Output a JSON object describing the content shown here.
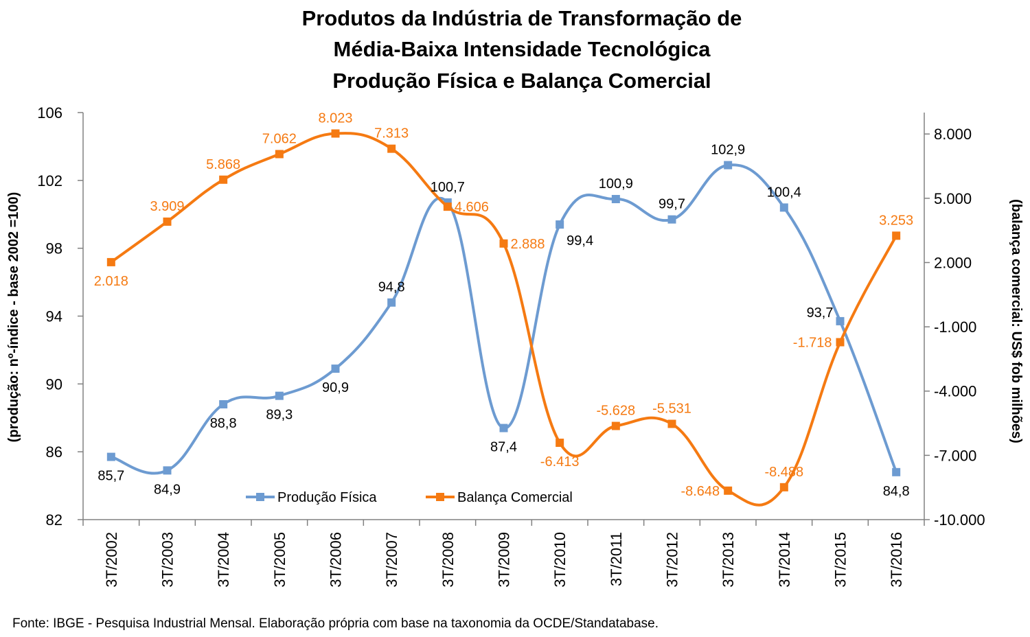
{
  "chart_data": {
    "type": "line",
    "title_lines": [
      "Produtos da Indústria de Transformação de",
      "Média-Baixa Intensidade Tecnológica",
      "Produção Física e Balança Comercial"
    ],
    "ylabel_left": "(produção:  nº-índice - base 2002 =100)",
    "ylabel_right": "(balança comercial:  US$ fob milhões)",
    "categories": [
      "3T/2002",
      "3T/2003",
      "3T/2004",
      "3T/2005",
      "3T/2006",
      "3T/2007",
      "3T/2008",
      "3T/2009",
      "3T/2010",
      "3T/2011",
      "3T/2012",
      "3T/2013",
      "3T/2014",
      "3T/2015",
      "3T/2016"
    ],
    "left_axis": {
      "ylim": [
        82,
        106
      ],
      "ticks": [
        "82",
        "86",
        "90",
        "94",
        "98",
        "102",
        "106"
      ],
      "tick_values": [
        82,
        86,
        90,
        94,
        98,
        102,
        106
      ]
    },
    "right_axis": {
      "ylim": [
        -10000,
        9000
      ],
      "ticks": [
        "-10.000",
        "-7.000",
        "-4.000",
        "-1.000",
        "2.000",
        "5.000",
        "8.000"
      ],
      "tick_values": [
        -10000,
        -7000,
        -4000,
        -1000,
        2000,
        5000,
        8000
      ]
    },
    "series": [
      {
        "name": "Produção Física",
        "axis": "left",
        "color": "#6d9bd1",
        "values": [
          85.7,
          84.9,
          88.8,
          89.3,
          90.9,
          94.8,
          100.7,
          87.4,
          99.4,
          100.9,
          99.7,
          102.9,
          100.4,
          93.7,
          84.8
        ],
        "labels": [
          "85,7",
          "84,9",
          "88,8",
          "89,3",
          "90,9",
          "94,8",
          "100,7",
          "87,4",
          "99,4",
          "100,9",
          "99,7",
          "102,9",
          "100,4",
          "93,7",
          "84,8"
        ],
        "label_positions": [
          "below",
          "below",
          "below",
          "below",
          "below",
          "above",
          "above",
          "below",
          "below-right",
          "above",
          "above",
          "above",
          "above",
          "above-left",
          "below"
        ]
      },
      {
        "name": "Balança Comercial",
        "axis": "right",
        "color": "#f57a12",
        "values": [
          2018,
          3909,
          5868,
          7062,
          8023,
          7313,
          4606,
          2888,
          -6413,
          -5628,
          -5531,
          -8648,
          -8488,
          -1718,
          3253
        ],
        "labels": [
          "2.018",
          "3.909",
          "5.868",
          "7.062",
          "8.023",
          "7.313",
          "4.606",
          "2.888",
          "-6.413",
          "-5.628",
          "-5.531",
          "-8.648",
          "-8.488",
          "-1.718",
          "3.253"
        ],
        "label_positions": [
          "below",
          "above",
          "above",
          "above",
          "above",
          "above",
          "right",
          "right",
          "below",
          "above",
          "above",
          "left",
          "above",
          "left",
          "above"
        ]
      }
    ],
    "legend": {
      "position": "bottom-center",
      "entries": [
        "Produção Física",
        "Balança Comercial"
      ]
    },
    "grid": false,
    "smooth_lines": true,
    "source": "Fonte:  IBGE - Pesquisa Industrial Mensal. Elaboração própria com base na taxonomia da OCDE/Standatabase."
  }
}
